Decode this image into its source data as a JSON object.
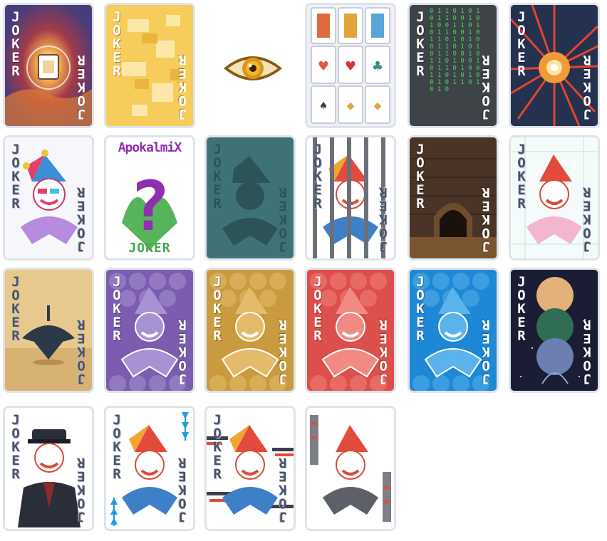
{
  "card_text": "JOKER",
  "brand_name": "ApokalmiX",
  "brand_label": "JOKER",
  "binary_text": "0 1 1 0 1 0 1 0 1 1 0 0 1 0 1 0 0 1 1 0 1 0 1 1 0 0 1 0 1 1 0 1 0 1 0 0 1 1 0 1 0 1 0 1 1 0 0 1 0 1 1 0 1 0 0 1 0 1 1 0 1 0 0 1 1 0 1 0 1 0 0 1 0 1 1 0 1 0 1 0",
  "colors": {
    "card_border": "#dfe3ea",
    "purple": "#7b5cae",
    "gold": "#c99a3e",
    "red": "#dc4f4a",
    "blue": "#1f88d6",
    "teal": "#3f7276",
    "sand": "#e8c98d",
    "night": "#1a1d33"
  }
}
